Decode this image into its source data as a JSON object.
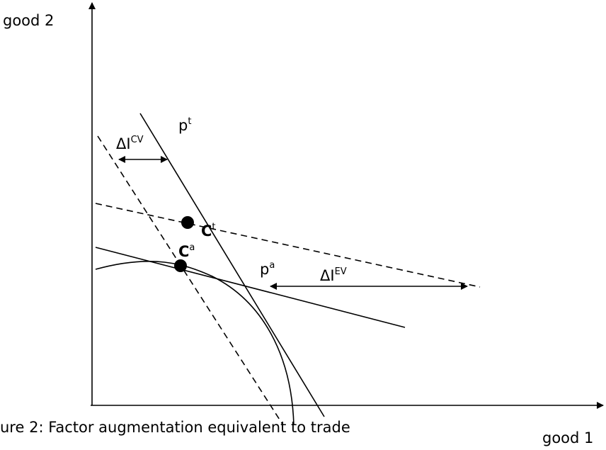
{
  "axes": {
    "y_label": "good 2",
    "x_label": "good 1"
  },
  "caption": "ure 2: Factor augmentation equivalent to trade",
  "labels": {
    "delta_cv": {
      "base": "ΔI",
      "sup": "CV"
    },
    "p_t": {
      "base": "p",
      "sup": "t"
    },
    "c_t": {
      "base": "C",
      "sup": "t"
    },
    "c_a": {
      "base": "C",
      "sup": "a"
    },
    "p_a": {
      "base": "p",
      "sup": "a"
    },
    "delta_ev": {
      "base": "ΔI",
      "sup": "EV"
    }
  }
}
